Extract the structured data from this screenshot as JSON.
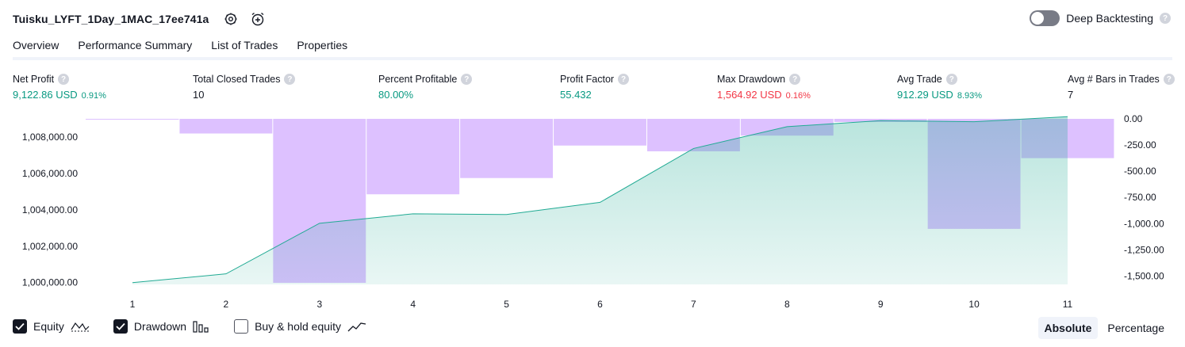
{
  "header": {
    "strategy_name": "Tuisku_LYFT_1Day_1MAC_17ee741a",
    "settings_icon": "gear-icon",
    "alert_icon": "alarm-clock-plus-icon",
    "deep_backtesting_label": "Deep Backtesting",
    "deep_backtesting_enabled": false,
    "help_glyph": "?"
  },
  "tabs": [
    {
      "label": "Overview",
      "active": true
    },
    {
      "label": "Performance Summary",
      "active": false
    },
    {
      "label": "List of Trades",
      "active": false
    },
    {
      "label": "Properties",
      "active": false
    }
  ],
  "metrics": [
    {
      "label": "Net Profit",
      "value": "9,122.86 USD",
      "pct": "0.91%",
      "color": "#089981"
    },
    {
      "label": "Total Closed Trades",
      "value": "10",
      "pct": "",
      "color": "#131722"
    },
    {
      "label": "Percent Profitable",
      "value": "80.00%",
      "pct": "",
      "color": "#089981"
    },
    {
      "label": "Profit Factor",
      "value": "55.432",
      "pct": "",
      "color": "#089981"
    },
    {
      "label": "Max Drawdown",
      "value": "1,564.92 USD",
      "pct": "0.16%",
      "color": "#f23645"
    },
    {
      "label": "Avg Trade",
      "value": "912.29 USD",
      "pct": "8.93%",
      "color": "#089981"
    },
    {
      "label": "Avg # Bars in Trades",
      "value": "7",
      "pct": "",
      "color": "#131722"
    }
  ],
  "chart_data": {
    "type": "area",
    "x": [
      1,
      2,
      3,
      4,
      5,
      6,
      7,
      8,
      9,
      10,
      11
    ],
    "x_tick_labels": [
      "1",
      "2",
      "3",
      "4",
      "5",
      "6",
      "7",
      "8",
      "9",
      "10",
      "11"
    ],
    "left_axis": {
      "ylim": [
        999900,
        1009000
      ],
      "tick_values": [
        1000000,
        1002000,
        1004000,
        1006000,
        1008000
      ],
      "tick_labels": [
        "1,000,000.00",
        "1,002,000.00",
        "1,004,000.00",
        "1,006,000.00",
        "1,008,000.00"
      ]
    },
    "right_axis": {
      "ylim": [
        -1580,
        0
      ],
      "tick_values": [
        0,
        -250,
        -500,
        -750,
        -1000,
        -1250,
        -1500
      ],
      "tick_labels": [
        "0.00",
        "-250.00",
        "-500.00",
        "-750.00",
        "-1,000.00",
        "-1,250.00",
        "-1,500.00"
      ]
    },
    "series": [
      {
        "name": "Equity",
        "axis": "left",
        "type": "area",
        "color": "#22ab94",
        "values": [
          1000000,
          1000480,
          1003260,
          1003780,
          1003740,
          1004410,
          1007370,
          1008570,
          1008900,
          1008840,
          1009120
        ]
      },
      {
        "name": "Drawdown",
        "axis": "right",
        "type": "bar",
        "color": "#c89bff",
        "values": [
          -5,
          -140,
          -1565,
          -720,
          -565,
          -255,
          -310,
          -160,
          -30,
          -1050,
          -375
        ]
      }
    ],
    "grid": false,
    "legend_position": "bottom-left"
  },
  "legend": [
    {
      "label": "Equity",
      "checked": true,
      "icon": "equity-line-icon"
    },
    {
      "label": "Drawdown",
      "checked": true,
      "icon": "drawdown-bars-icon"
    },
    {
      "label": "Buy & hold equity",
      "checked": false,
      "icon": "buy-hold-line-icon"
    }
  ],
  "mode_toggle": {
    "options": [
      "Absolute",
      "Percentage"
    ],
    "selected": "Absolute"
  }
}
